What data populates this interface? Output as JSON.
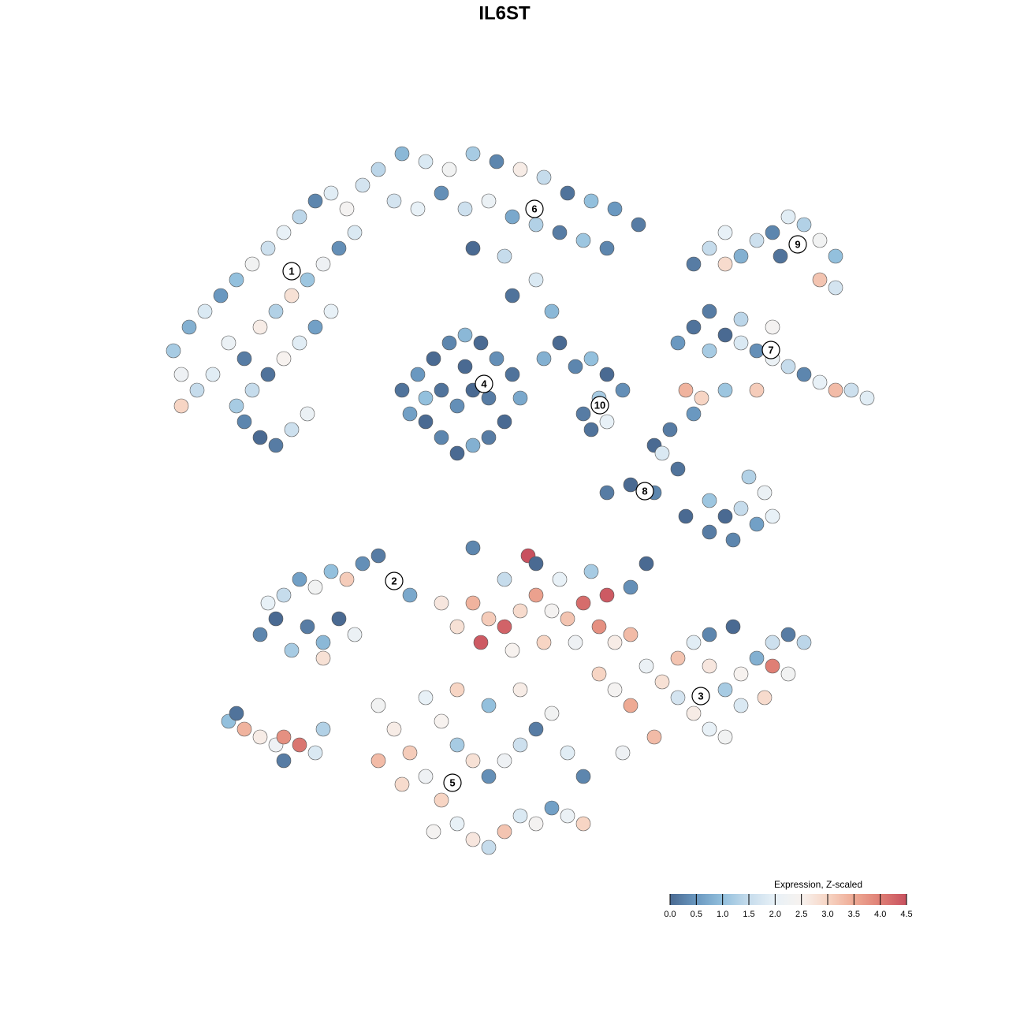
{
  "chart_data": {
    "type": "scatter",
    "title": "IL6ST",
    "xlim": [
      0,
      94
    ],
    "ylim": [
      0,
      93
    ],
    "x": [
      2,
      4,
      6,
      3,
      5,
      8,
      10,
      12,
      14,
      16,
      18,
      20,
      22,
      24,
      26,
      9,
      11,
      13,
      15,
      17,
      19,
      21,
      23,
      25,
      12,
      14,
      16,
      18,
      20,
      22,
      11,
      13,
      15,
      17,
      19,
      10,
      7,
      3,
      28,
      31,
      34,
      37,
      40,
      43,
      46,
      49,
      52,
      55,
      58,
      61,
      30,
      33,
      36,
      39,
      42,
      45,
      48,
      51,
      54,
      57,
      40,
      44,
      48,
      50,
      45,
      68,
      70,
      72,
      74,
      76,
      78,
      80,
      82,
      84,
      86,
      84,
      86,
      72,
      79,
      66,
      68,
      70,
      72,
      74,
      76,
      78,
      80,
      82,
      84,
      86,
      88,
      90,
      70,
      74,
      78,
      67,
      69,
      72,
      76,
      31,
      33,
      35,
      37,
      39,
      41,
      43,
      45,
      46,
      44,
      42,
      40,
      38,
      36,
      34,
      32,
      36,
      40,
      38,
      42,
      34,
      39,
      53,
      55,
      57,
      59,
      56,
      54,
      57,
      55,
      49,
      51,
      57,
      60,
      63,
      66,
      63,
      65,
      68,
      70,
      72,
      74,
      76,
      78,
      70,
      73,
      75,
      67,
      64,
      77,
      13,
      15,
      17,
      19,
      21,
      23,
      25,
      16,
      18,
      20,
      22,
      24,
      26,
      28,
      30,
      32,
      14,
      21,
      9,
      11,
      13,
      15,
      16,
      18,
      20,
      16,
      10,
      21,
      40,
      42,
      44,
      46,
      48,
      50,
      52,
      54,
      56,
      58,
      60,
      38,
      41,
      45,
      49,
      53,
      47,
      44,
      40,
      48,
      55,
      60,
      62,
      36,
      51,
      57,
      56,
      58,
      60,
      62,
      64,
      66,
      68,
      70,
      72,
      66,
      68,
      70,
      72,
      74,
      76,
      78,
      80,
      82,
      80,
      77,
      74,
      70,
      63,
      59,
      78,
      73,
      28,
      30,
      32,
      34,
      36,
      38,
      40,
      42,
      44,
      46,
      48,
      50,
      52,
      54,
      36,
      38,
      40,
      42,
      44,
      46,
      48,
      50,
      34,
      38,
      42,
      46,
      31,
      35,
      54,
      52,
      28
    ],
    "y": [
      65,
      68,
      70,
      62,
      60,
      72,
      74,
      76,
      78,
      80,
      82,
      84,
      85,
      83,
      86,
      66,
      64,
      68,
      70,
      72,
      74,
      76,
      78,
      80,
      60,
      62,
      64,
      66,
      68,
      70,
      56,
      54,
      53,
      55,
      57,
      58,
      62,
      58,
      88,
      90,
      89,
      88,
      90,
      89,
      88,
      87,
      85,
      84,
      83,
      81,
      84,
      83,
      85,
      83,
      84,
      82,
      81,
      80,
      79,
      78,
      78,
      77,
      74,
      70,
      72,
      76,
      78,
      80,
      77,
      79,
      80,
      82,
      81,
      79,
      77,
      74,
      73,
      76,
      77,
      66,
      68,
      65,
      67,
      66,
      65,
      64,
      63,
      62,
      61,
      60,
      60,
      59,
      70,
      69,
      68,
      60,
      59,
      60,
      60,
      60,
      62,
      64,
      66,
      67,
      66,
      64,
      62,
      59,
      56,
      54,
      53,
      52,
      54,
      56,
      57,
      60,
      60,
      58,
      59,
      59,
      63,
      63,
      64,
      62,
      60,
      59,
      57,
      56,
      55,
      64,
      66,
      47,
      48,
      47,
      50,
      53,
      55,
      57,
      46,
      44,
      45,
      43,
      44,
      42,
      41,
      49,
      44,
      52,
      47,
      29,
      31,
      27,
      30,
      28,
      31,
      29,
      34,
      36,
      35,
      37,
      36,
      38,
      39,
      36,
      34,
      33,
      26,
      18,
      17,
      16,
      15,
      16,
      15,
      14,
      13,
      19,
      17,
      33,
      31,
      30,
      32,
      34,
      32,
      31,
      33,
      30,
      28,
      29,
      30,
      28,
      27,
      28,
      28,
      39,
      36,
      40,
      38,
      37,
      35,
      38,
      33,
      36,
      34,
      24,
      22,
      20,
      25,
      23,
      21,
      19,
      17,
      16,
      26,
      28,
      25,
      22,
      24,
      26,
      28,
      29,
      28,
      24,
      21,
      20,
      29,
      16,
      14,
      25,
      30,
      20,
      17,
      14,
      11,
      8,
      5,
      3,
      2,
      4,
      6,
      5,
      7,
      6,
      5,
      18,
      15,
      13,
      11,
      13,
      15,
      17,
      19,
      21,
      22,
      20,
      22,
      10,
      4,
      11,
      14,
      13
    ],
    "values": [
      1.2,
      0.8,
      1.8,
      2.2,
      1.5,
      0.5,
      1.0,
      2.3,
      1.6,
      2.0,
      1.4,
      0.3,
      1.9,
      2.4,
      1.7,
      2.1,
      0.2,
      2.6,
      1.3,
      2.8,
      1.1,
      2.2,
      0.4,
      1.8,
      1.5,
      0.1,
      2.5,
      1.9,
      0.6,
      2.0,
      0.3,
      0.0,
      0.2,
      1.6,
      2.1,
      1.2,
      1.9,
      3.0,
      1.4,
      0.9,
      1.8,
      2.3,
      1.2,
      0.3,
      2.6,
      1.5,
      0.1,
      1.0,
      0.5,
      0.2,
      1.7,
      2.0,
      0.4,
      1.6,
      2.1,
      0.7,
      1.3,
      0.2,
      1.1,
      0.3,
      0.0,
      1.5,
      1.8,
      0.9,
      0.1,
      0.2,
      1.5,
      2.0,
      0.8,
      1.6,
      0.3,
      1.9,
      1.3,
      2.3,
      1.0,
      3.2,
      1.7,
      2.9,
      0.1,
      0.5,
      0.1,
      1.2,
      0.0,
      1.8,
      0.4,
      2.1,
      1.5,
      0.3,
      2.0,
      3.3,
      1.6,
      1.9,
      0.2,
      1.4,
      2.4,
      3.4,
      3.0,
      1.1,
      3.1,
      0.1,
      0.5,
      0.0,
      0.3,
      0.9,
      0.0,
      0.4,
      0.1,
      0.7,
      0.0,
      0.2,
      0.8,
      0.0,
      0.3,
      0.0,
      0.6,
      0.1,
      0.0,
      0.4,
      0.2,
      1.0,
      0.0,
      0.3,
      1.0,
      0.0,
      0.4,
      1.2,
      0.2,
      2.0,
      0.1,
      0.8,
      0.0,
      0.2,
      0.0,
      0.3,
      0.1,
      0.0,
      0.2,
      0.5,
      1.1,
      0.0,
      1.5,
      0.6,
      2.0,
      0.2,
      0.3,
      1.3,
      0.0,
      1.8,
      2.1,
      0.3,
      0.0,
      1.2,
      0.2,
      0.9,
      0.0,
      2.1,
      1.5,
      0.6,
      2.3,
      1.0,
      3.1,
      0.4,
      0.2,
      1.6,
      0.7,
      2.0,
      2.8,
      1.0,
      3.4,
      2.6,
      2.2,
      3.8,
      4.1,
      1.8,
      0.2,
      0.1,
      1.3,
      3.4,
      3.1,
      4.3,
      2.9,
      3.6,
      2.4,
      3.2,
      4.2,
      3.8,
      2.6,
      3.3,
      2.8,
      4.4,
      2.5,
      3.0,
      2.2,
      4.5,
      1.5,
      0.3,
      0.0,
      1.2,
      0.4,
      0.0,
      2.7,
      2.0,
      4.4,
      3.0,
      2.4,
      3.5,
      2.1,
      2.8,
      1.7,
      2.6,
      2.0,
      2.3,
      3.2,
      1.9,
      2.7,
      1.2,
      2.5,
      0.8,
      1.6,
      0.2,
      1.4,
      2.3,
      2.9,
      1.8,
      0.3,
      3.3,
      2.2,
      4.0,
      0.0,
      2.3,
      2.6,
      3.1,
      2.2,
      3.0,
      2.0,
      2.7,
      1.5,
      3.2,
      1.8,
      2.4,
      0.6,
      2.1,
      3.0,
      2.5,
      1.2,
      2.8,
      0.4,
      2.2,
      1.6,
      0.2,
      2.3,
      2.0,
      3.0,
      1.0,
      2.6,
      2.9,
      2.4,
      0.3,
      1.9,
      3.3
    ],
    "clusters": [
      {
        "label": "1",
        "x": 17,
        "y": 75.1
      },
      {
        "label": "2",
        "x": 30,
        "y": 35.8
      },
      {
        "label": "3",
        "x": 68.9,
        "y": 21.2
      },
      {
        "label": "4",
        "x": 41.4,
        "y": 60.8
      },
      {
        "label": "5",
        "x": 37.4,
        "y": 10.2
      },
      {
        "label": "6",
        "x": 47.8,
        "y": 83
      },
      {
        "label": "7",
        "x": 77.8,
        "y": 65.1
      },
      {
        "label": "8",
        "x": 61.8,
        "y": 47.2
      },
      {
        "label": "9",
        "x": 81.2,
        "y": 78.5
      },
      {
        "label": "10",
        "x": 56.1,
        "y": 58.1
      }
    ],
    "colorbar_title": "Expression, Z-scaled",
    "clim": [
      0,
      4.5
    ],
    "cticks": [
      {
        "value": 0,
        "label": "0.0"
      },
      {
        "value": 0.5,
        "label": "0.5"
      },
      {
        "value": 1,
        "label": "1.0"
      },
      {
        "value": 1.5,
        "label": "1.5"
      },
      {
        "value": 2,
        "label": "2.0"
      },
      {
        "value": 2.5,
        "label": "2.5"
      },
      {
        "value": 3,
        "label": "3.0"
      },
      {
        "value": 3.5,
        "label": "3.5"
      },
      {
        "value": 4,
        "label": "4.0"
      },
      {
        "value": 4.5,
        "label": "4.5"
      }
    ],
    "colorscale": [
      "#4a6a92",
      "#6a98c0",
      "#93c0dd",
      "#c6dcec",
      "#e8f1f7",
      "#f7f2ef",
      "#f7d5c4",
      "#eeaa94",
      "#df7f75",
      "#c8515f"
    ]
  }
}
